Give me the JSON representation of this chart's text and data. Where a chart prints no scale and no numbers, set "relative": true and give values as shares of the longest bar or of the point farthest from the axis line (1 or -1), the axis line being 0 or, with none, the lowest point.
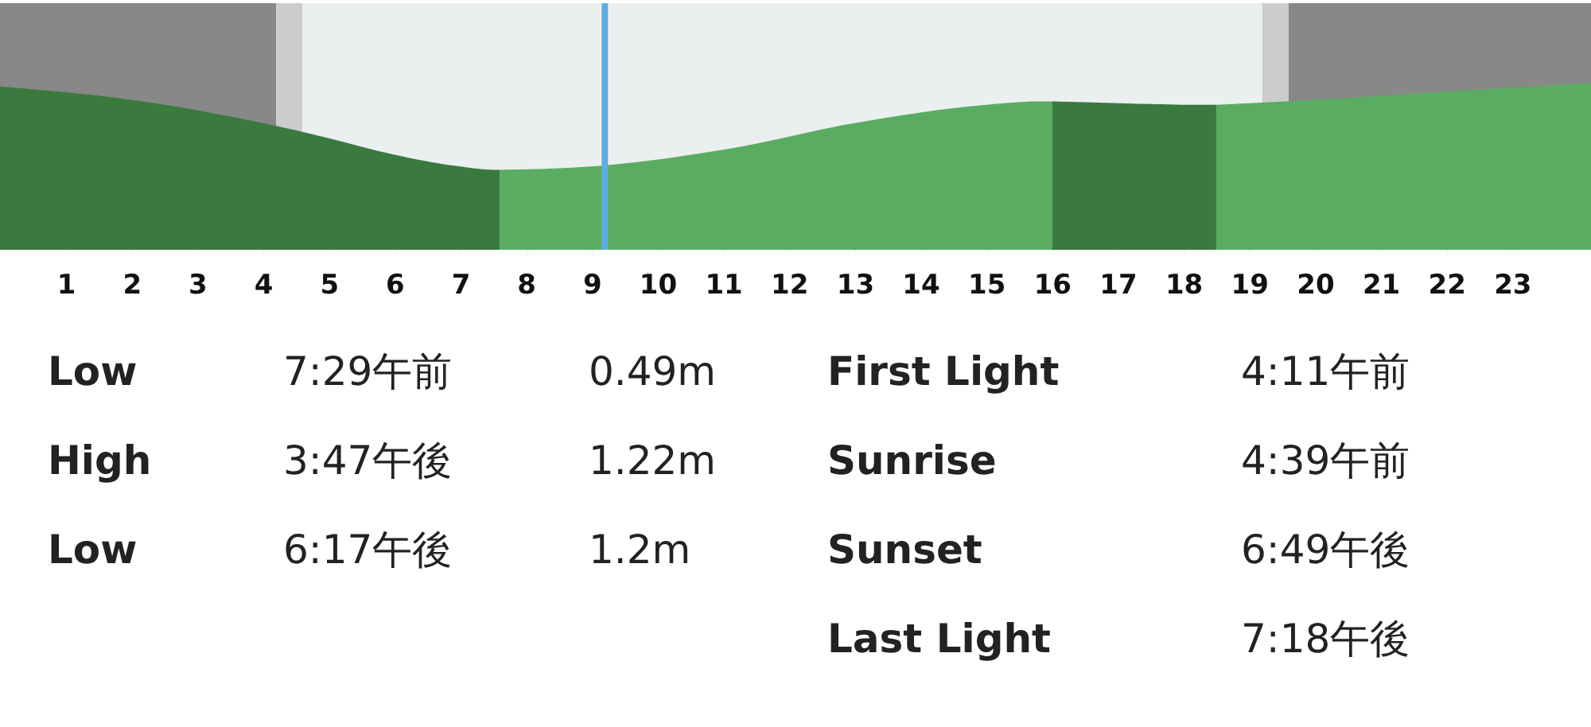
{
  "chart_data": {
    "type": "area",
    "relative": true,
    "x": [
      0,
      2,
      4,
      5,
      6,
      7,
      7.5,
      7.6,
      9,
      11,
      13,
      15,
      15.8,
      16,
      17,
      18.3,
      18.5,
      20,
      22,
      24.2
    ],
    "series": [
      {
        "color": "#3a7a3e",
        "values": [
          0.98,
          0.9,
          0.76,
          0.67,
          0.57,
          0.5,
          0.48,
          0.48,
          null,
          null,
          null,
          null,
          null,
          0.89,
          0.88,
          0.87,
          0.87,
          null,
          null,
          null
        ]
      },
      {
        "color": "#5aac62",
        "values": [
          null,
          null,
          null,
          null,
          null,
          null,
          null,
          0.48,
          0.5,
          0.6,
          0.76,
          0.87,
          0.89,
          0.89,
          null,
          null,
          0.87,
          0.9,
          0.95,
          1
        ]
      }
    ],
    "xlim": [
      0,
      24.2
    ],
    "xticks": [
      1,
      2,
      3,
      4,
      5,
      6,
      7,
      8,
      9,
      10,
      11,
      12,
      13,
      14,
      15,
      16,
      17,
      18,
      19,
      20,
      21,
      22,
      23
    ],
    "grid": "x",
    "tick_labels": "x",
    "bands": [
      {
        "axis": "x",
        "from": 0,
        "to": 4.2,
        "color": "#888888"
      },
      {
        "axis": "x",
        "from": 4.2,
        "to": 4.6,
        "color": "#cccccc"
      },
      {
        "axis": "x",
        "from": 4.6,
        "to": 19.2,
        "color": "#eceff0"
      },
      {
        "axis": "x",
        "from": 19.2,
        "to": 19.6,
        "color": "#cccccc"
      },
      {
        "axis": "x",
        "from": 19.6,
        "to": 24.2,
        "color": "#888888"
      }
    ],
    "ref_lines": [
      {
        "axis": "x",
        "value": 9.2,
        "color": "#5dade2"
      }
    ],
    "annotations": [
      "Low",
      "7:29午前",
      "0.49m",
      "First Light",
      "4:11午前",
      "High",
      "3:47午後",
      "1.22m",
      "Sunrise",
      "4:39午前",
      "Low",
      "6:17午後",
      "1.2m",
      "Sunset",
      "6:49午後",
      "Last Light",
      "7:18午後"
    ]
  }
}
